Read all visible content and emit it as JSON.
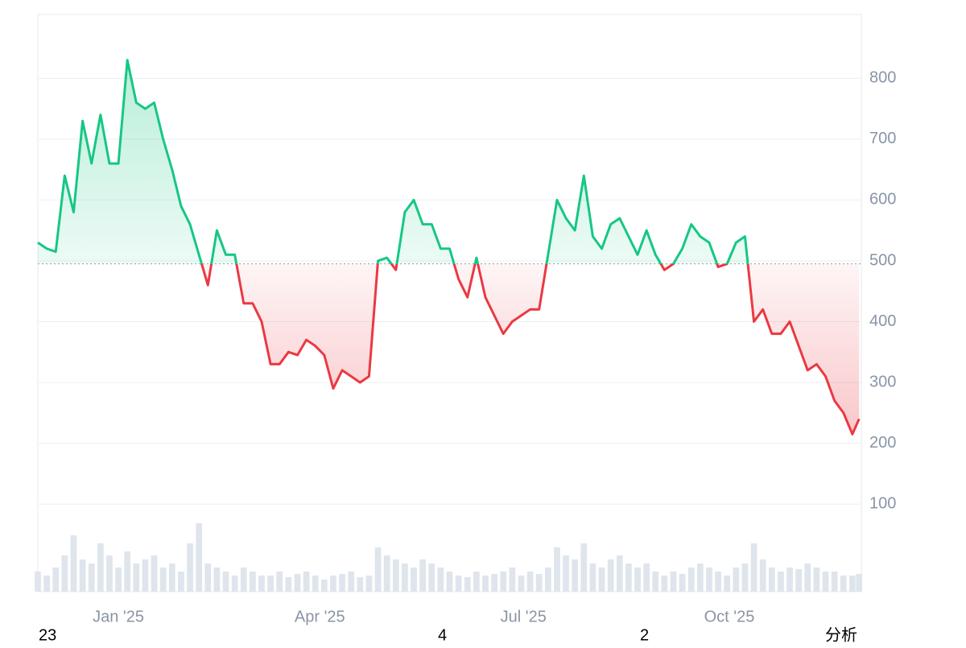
{
  "chart_data": {
    "type": "baseline-line",
    "x": [
      -36,
      -32,
      -28,
      -24,
      -20,
      -16,
      -12,
      -8,
      -4,
      0,
      4,
      8,
      12,
      16,
      20,
      24,
      28,
      32,
      36,
      40,
      44,
      48,
      52,
      56,
      60,
      64,
      68,
      72,
      76,
      80,
      84,
      88,
      92,
      96,
      100,
      104,
      108,
      112,
      116,
      120,
      124,
      128,
      132,
      136,
      140,
      144,
      148,
      152,
      156,
      160,
      164,
      168,
      172,
      176,
      180,
      184,
      188,
      192,
      196,
      200,
      204,
      208,
      212,
      216,
      220,
      224,
      228,
      232,
      236,
      240,
      244,
      248,
      252,
      256,
      260,
      264,
      268,
      272,
      276,
      280,
      284,
      288,
      292,
      296,
      300,
      304,
      308,
      312,
      316,
      320,
      324,
      328,
      331
    ],
    "series": [
      {
        "name": "price",
        "values": [
          530,
          520,
          515,
          640,
          580,
          730,
          660,
          740,
          660,
          660,
          830,
          760,
          750,
          760,
          700,
          650,
          590,
          560,
          510,
          460,
          550,
          510,
          510,
          430,
          430,
          400,
          330,
          330,
          350,
          345,
          370,
          360,
          345,
          290,
          320,
          310,
          300,
          310,
          500,
          505,
          485,
          580,
          600,
          560,
          560,
          520,
          520,
          470,
          440,
          505,
          440,
          410,
          380,
          400,
          410,
          420,
          420,
          510,
          600,
          570,
          550,
          640,
          540,
          520,
          560,
          570,
          540,
          510,
          550,
          510,
          485,
          495,
          520,
          560,
          540,
          530,
          490,
          495,
          530,
          540,
          400,
          420,
          380,
          380,
          400,
          360,
          320,
          330,
          310,
          270,
          250,
          215,
          240
        ]
      },
      {
        "name": "volume",
        "axis": "y2",
        "color": "#dfe5ec",
        "values": [
          25,
          20,
          30,
          45,
          70,
          40,
          35,
          60,
          45,
          30,
          50,
          35,
          40,
          45,
          30,
          35,
          25,
          60,
          85,
          35,
          30,
          25,
          20,
          30,
          25,
          20,
          20,
          25,
          18,
          22,
          25,
          20,
          15,
          20,
          22,
          25,
          18,
          20,
          55,
          45,
          40,
          35,
          30,
          40,
          35,
          30,
          25,
          20,
          18,
          25,
          20,
          22,
          25,
          30,
          20,
          25,
          22,
          30,
          55,
          45,
          40,
          60,
          35,
          30,
          40,
          45,
          35,
          30,
          35,
          25,
          20,
          25,
          22,
          30,
          35,
          30,
          25,
          20,
          30,
          35,
          60,
          40,
          30,
          25,
          30,
          28,
          35,
          30,
          25,
          25,
          20,
          20,
          22
        ]
      }
    ],
    "baseline": 495,
    "up_color": "#16c784",
    "down_color": "#ea3943",
    "xlim": [
      -36,
      332
    ],
    "xticks": [
      {
        "value": 0,
        "label": "Jan '25"
      },
      {
        "value": 90,
        "label": "Apr '25"
      },
      {
        "value": 181,
        "label": "Jul '25"
      },
      {
        "value": 273,
        "label": "Oct '25"
      }
    ],
    "ylim": [
      -44,
      905
    ],
    "yticks": [
      100,
      200,
      300,
      400,
      500,
      600,
      700,
      800
    ],
    "y2lim": [
      0,
      100
    ],
    "grid": true,
    "footer_labels": [
      "23",
      "4",
      "2",
      "分析"
    ]
  }
}
